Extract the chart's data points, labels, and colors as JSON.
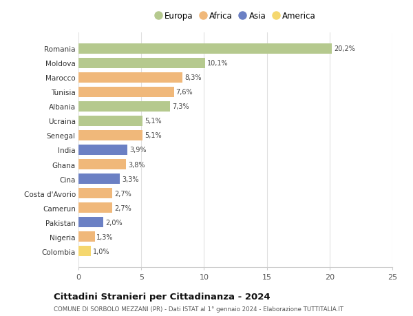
{
  "countries": [
    "Romania",
    "Moldova",
    "Marocco",
    "Tunisia",
    "Albania",
    "Ucraina",
    "Senegal",
    "India",
    "Ghana",
    "Cina",
    "Costa d'Avorio",
    "Camerun",
    "Pakistan",
    "Nigeria",
    "Colombia"
  ],
  "values": [
    20.2,
    10.1,
    8.3,
    7.6,
    7.3,
    5.1,
    5.1,
    3.9,
    3.8,
    3.3,
    2.7,
    2.7,
    2.0,
    1.3,
    1.0
  ],
  "labels": [
    "20,2%",
    "10,1%",
    "8,3%",
    "7,6%",
    "7,3%",
    "5,1%",
    "5,1%",
    "3,9%",
    "3,8%",
    "3,3%",
    "2,7%",
    "2,7%",
    "2,0%",
    "1,3%",
    "1,0%"
  ],
  "continents": [
    "Europa",
    "Europa",
    "Africa",
    "Africa",
    "Europa",
    "Europa",
    "Africa",
    "Asia",
    "Africa",
    "Asia",
    "Africa",
    "Africa",
    "Asia",
    "Africa",
    "America"
  ],
  "colors": {
    "Europa": "#b5c98e",
    "Africa": "#f0b87a",
    "Asia": "#6b80c4",
    "America": "#f5d76e"
  },
  "legend_order": [
    "Europa",
    "Africa",
    "Asia",
    "America"
  ],
  "title": "Cittadini Stranieri per Cittadinanza - 2024",
  "subtitle": "COMUNE DI SORBOLO MEZZANI (PR) - Dati ISTAT al 1° gennaio 2024 - Elaborazione TUTTITALIA.IT",
  "xlim": [
    0,
    25
  ],
  "xticks": [
    0,
    5,
    10,
    15,
    20,
    25
  ],
  "background_color": "#ffffff",
  "grid_color": "#e0e0e0",
  "bar_height": 0.7
}
